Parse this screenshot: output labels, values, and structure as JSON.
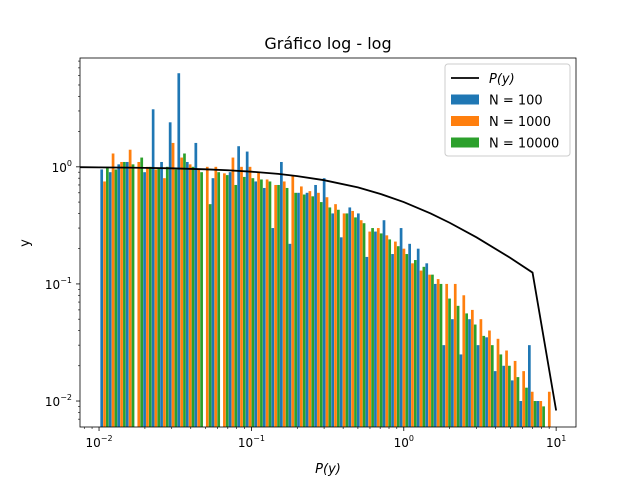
{
  "chart_data": {
    "type": "bar",
    "title": "Gráfico log - log",
    "xlabel": "P(y)",
    "ylabel": "y",
    "x_scale": "log",
    "y_scale": "log",
    "xlim": [
      0.0075,
      13.5
    ],
    "ylim": [
      0.006,
      8.5
    ],
    "x_ticks": [
      {
        "value": 0.01,
        "base": "10",
        "exp": "−2"
      },
      {
        "value": 0.1,
        "base": "10",
        "exp": "−1"
      },
      {
        "value": 1,
        "base": "10",
        "exp": "0"
      },
      {
        "value": 10,
        "base": "10",
        "exp": "1"
      }
    ],
    "y_ticks": [
      {
        "value": 0.01,
        "base": "10",
        "exp": "−2"
      },
      {
        "value": 0.1,
        "base": "10",
        "exp": "−1"
      },
      {
        "value": 1,
        "base": "10",
        "exp": "0"
      }
    ],
    "bin_edges": [
      0.0102,
      0.0116,
      0.0132,
      0.015,
      0.0171,
      0.0195,
      0.0222,
      0.0252,
      0.0287,
      0.0327,
      0.0372,
      0.0423,
      0.0482,
      0.0548,
      0.0624,
      0.071,
      0.0808,
      0.0919,
      0.1046,
      0.119,
      0.1354,
      0.1541,
      0.1754,
      0.1996,
      0.2271,
      0.2584,
      0.2941,
      0.3346,
      0.3808,
      0.4333,
      0.4931,
      0.5611,
      0.6385,
      0.7266,
      0.8268,
      0.9408,
      1.0706,
      1.2183,
      1.3864,
      1.5776,
      1.7952,
      2.0428,
      2.3246,
      2.6453,
      3.0102,
      3.4254,
      3.8979,
      4.4356,
      5.0474,
      5.7437,
      6.536,
      7.4376,
      8.4636,
      9.6311
    ],
    "series": [
      {
        "name": "N = 100",
        "color": "#1f77b4",
        "values": [
          0.95,
          0.9,
          1.05,
          1.1,
          0,
          0.9,
          3.1,
          1.1,
          2.4,
          6.3,
          1.1,
          1.6,
          0,
          0.8,
          0,
          0.9,
          1.5,
          1.35,
          0.75,
          0.66,
          0.3,
          1.1,
          0.22,
          0.6,
          0.6,
          0.7,
          0.8,
          0.4,
          0.25,
          0.45,
          0.4,
          0.17,
          0.28,
          0.35,
          0.18,
          0.3,
          0.22,
          0.2,
          0.15,
          0.1,
          0.03,
          0.05,
          0.025,
          0.05,
          0.03,
          0.035,
          0.018,
          0.02,
          0.015,
          0.01,
          0.03,
          0.01,
          0.0
        ],
        "label": "N = 100"
      },
      {
        "name": "N = 1000",
        "color": "#ff7f0e",
        "values": [
          0.75,
          1.3,
          1.1,
          1.4,
          1.1,
          1.0,
          0.95,
          0.8,
          1.6,
          1.2,
          1.05,
          0.95,
          1.0,
          1.0,
          0.88,
          1.2,
          1.0,
          1.0,
          0.9,
          0.78,
          0.7,
          0.75,
          0.85,
          0.68,
          0.62,
          0.6,
          0.55,
          0.48,
          0.4,
          0.42,
          0.35,
          0.28,
          0.3,
          0.26,
          0.23,
          0.2,
          0.15,
          0.13,
          0.12,
          0.11,
          0.1,
          0.1,
          0.08,
          0.06,
          0.05,
          0.04,
          0.034,
          0.027,
          0.022,
          0.018,
          0.012,
          0.01,
          0.012
        ],
        "label": "N = 1000"
      },
      {
        "name": "N = 10000",
        "color": "#2ca02c",
        "values": [
          1.0,
          0.95,
          1.1,
          1.05,
          1.2,
          1.0,
          0.98,
          1.0,
          0.95,
          1.3,
          1.0,
          0.9,
          0.48,
          0.9,
          0.85,
          0.7,
          0.82,
          0.8,
          0.78,
          0.75,
          0.7,
          0.66,
          0.6,
          0.58,
          0.56,
          0.5,
          0.45,
          0.43,
          0.4,
          0.37,
          0.33,
          0.3,
          0.27,
          0.24,
          0.21,
          0.18,
          0.16,
          0.14,
          0.12,
          0.1,
          0.075,
          0.065,
          0.056,
          0.045,
          0.036,
          0.03,
          0.025,
          0.02,
          0.016,
          0.013,
          0.01,
          0.009,
          0.0
        ],
        "label": "N = 10000"
      }
    ],
    "curve": {
      "name": "P(y)",
      "color": "#000000",
      "x": [
        0.0075,
        0.01,
        0.015,
        0.02,
        0.03,
        0.05,
        0.07,
        0.1,
        0.15,
        0.2,
        0.3,
        0.5,
        0.7,
        1.0,
        1.5,
        2.0,
        3.0,
        5.0,
        7.0,
        10.0
      ],
      "y": [
        0.993,
        0.99,
        0.985,
        0.98,
        0.971,
        0.952,
        0.935,
        0.909,
        0.87,
        0.833,
        0.769,
        0.667,
        0.588,
        0.5,
        0.4,
        0.333,
        0.25,
        0.167,
        0.125,
        0.0083
      ]
    },
    "legend": {
      "position": "top-right",
      "entries": [
        {
          "label": "P(y)",
          "kind": "line",
          "color": "#000000"
        },
        {
          "label": "N = 100",
          "kind": "bar",
          "color": "#1f77b4"
        },
        {
          "label": "N = 1000",
          "kind": "bar",
          "color": "#ff7f0e"
        },
        {
          "label": "N = 10000",
          "kind": "bar",
          "color": "#2ca02c"
        }
      ]
    }
  }
}
